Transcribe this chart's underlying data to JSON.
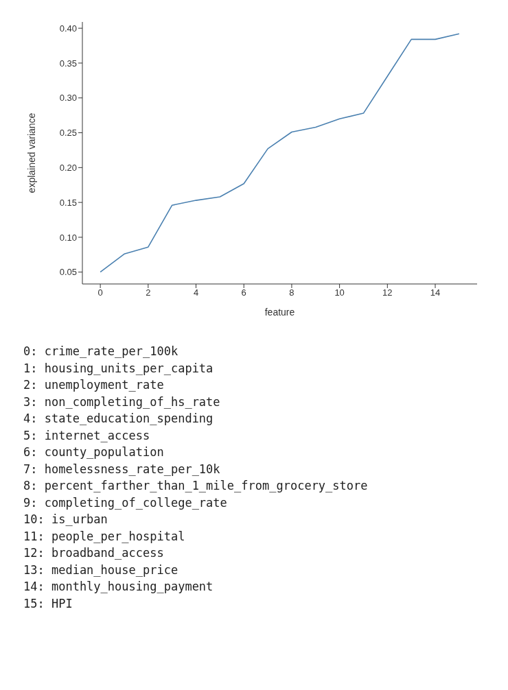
{
  "chart_data": {
    "type": "line",
    "xlabel": "feature",
    "ylabel": "explained variance",
    "x": [
      0,
      1,
      2,
      3,
      4,
      5,
      6,
      7,
      8,
      9,
      10,
      11,
      12,
      13,
      14,
      15
    ],
    "series": [
      {
        "color": "#4a80b0",
        "values": [
          0.05,
          0.076,
          0.086,
          0.146,
          0.153,
          0.158,
          0.177,
          0.227,
          0.251,
          0.258,
          0.27,
          0.278,
          0.331,
          0.384,
          0.384,
          0.392
        ]
      }
    ],
    "xlim": [
      -0.75,
      15.75
    ],
    "xticks": [
      0,
      2,
      4,
      6,
      8,
      10,
      12,
      14
    ],
    "ylim": [
      0.033,
      0.409
    ],
    "yticks": [
      {
        "value": 0.05,
        "label": "0.05"
      },
      {
        "value": 0.1,
        "label": "0.10"
      },
      {
        "value": 0.15,
        "label": "0.15"
      },
      {
        "value": 0.2,
        "label": "0.20"
      },
      {
        "value": 0.25,
        "label": "0.25"
      },
      {
        "value": 0.3,
        "label": "0.30"
      },
      {
        "value": 0.35,
        "label": "0.35"
      },
      {
        "value": 0.4,
        "label": "0.40"
      }
    ],
    "grid": false,
    "legend": false,
    "line_style": "solid",
    "annotations": [
      "0: crime_rate_per_100k",
      "1: housing_units_per_capita",
      "2: unemployment_rate",
      "3: non_completing_of_hs_rate",
      "4: state_education_spending",
      "5: internet_access",
      "6: county_population",
      "7: homelessness_rate_per_10k",
      "8: percent_farther_than_1_mile_from_grocery_store",
      "9: completing_of_college_rate",
      "10: is_urban",
      "11: people_per_hospital",
      "12: broadband_access",
      "13: median_house_price",
      "14: monthly_housing_payment",
      "15: HPI"
    ]
  }
}
